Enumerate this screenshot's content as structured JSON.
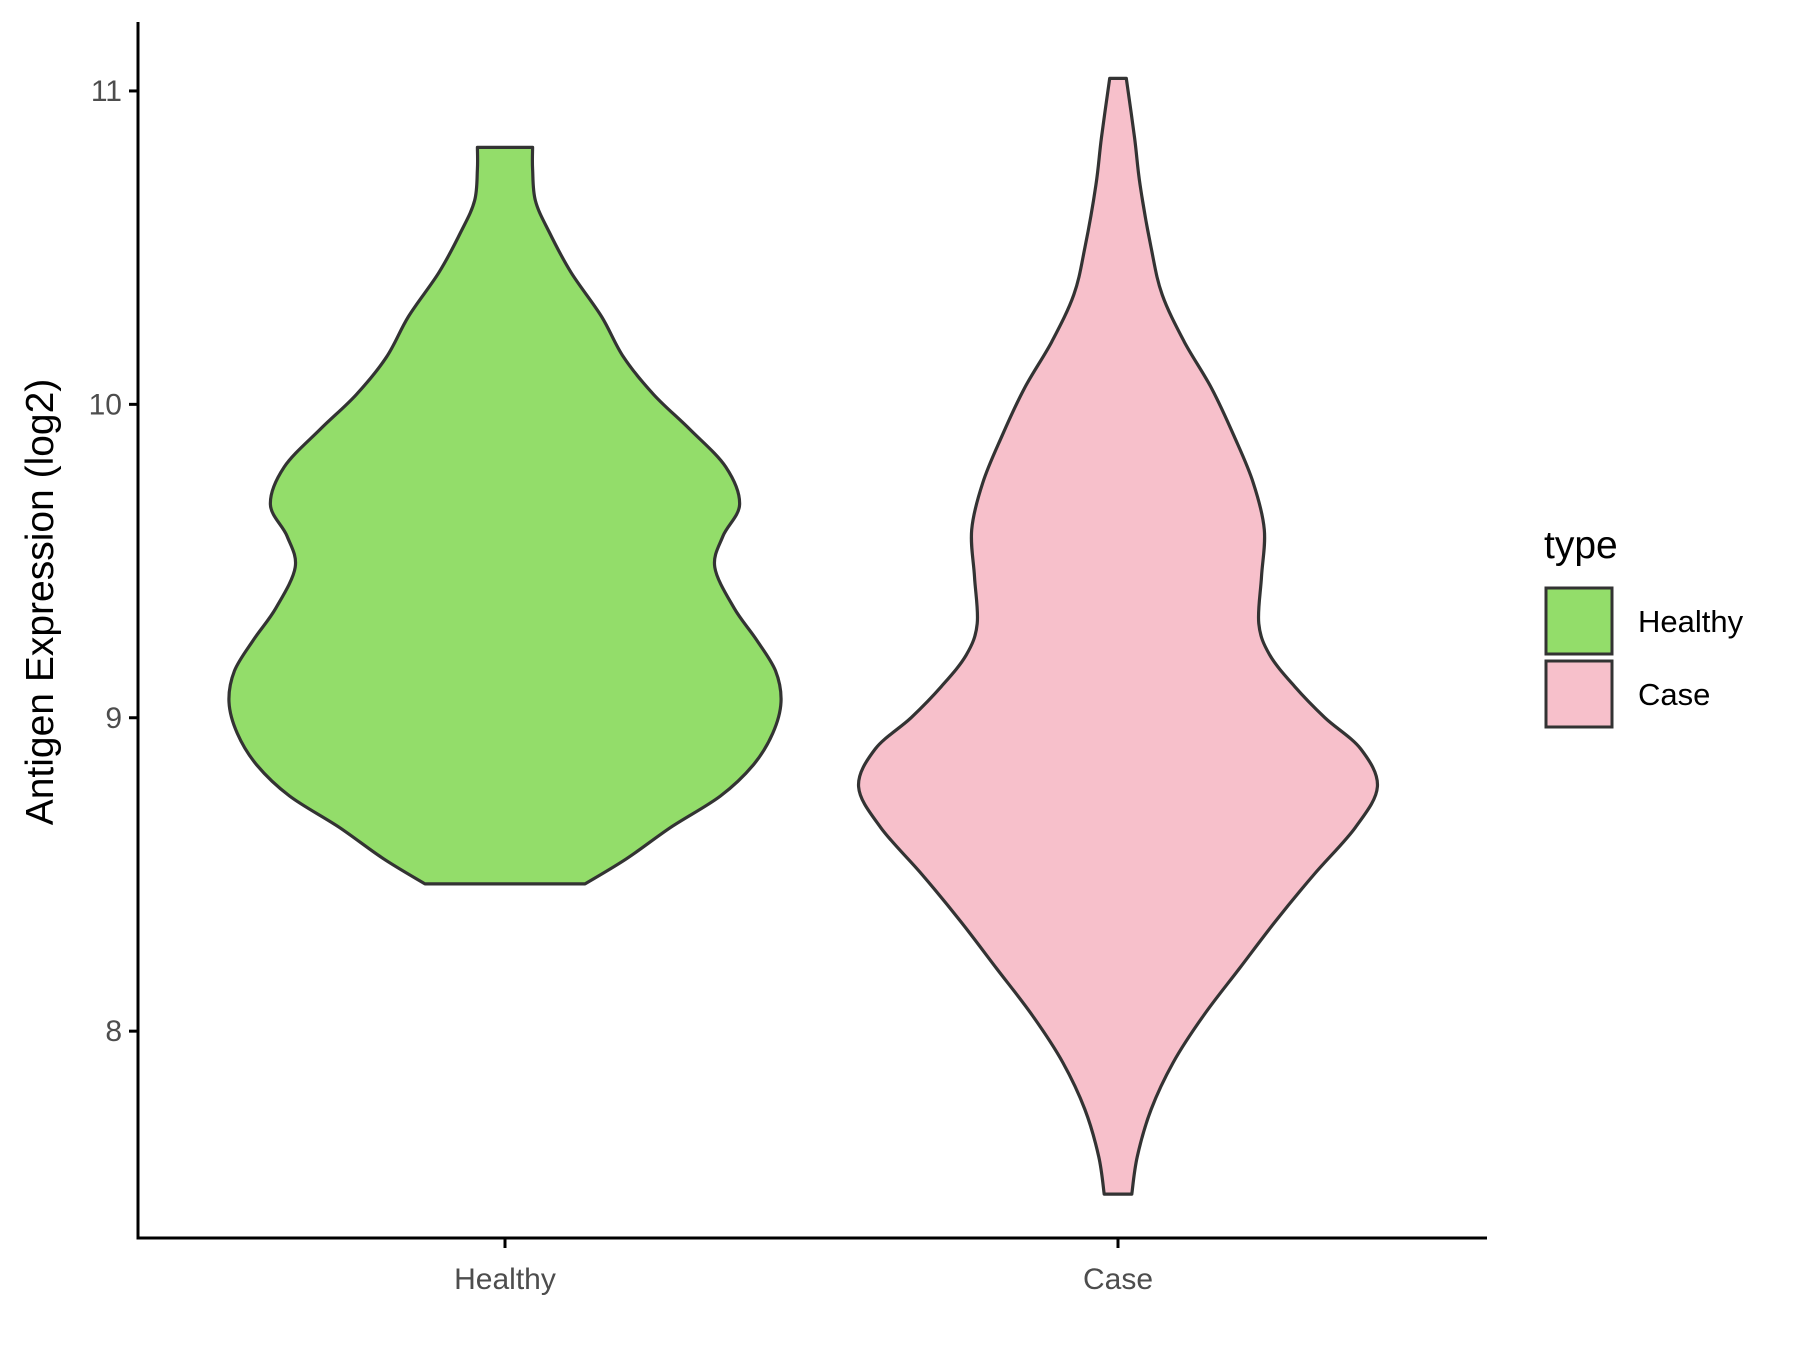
{
  "chart_data": {
    "type": "violin",
    "title": "",
    "xlabel": "",
    "ylabel": "Antigen Expression (log2)",
    "ylim": [
      7.34,
      11.22
    ],
    "yticks": [
      8,
      9,
      10,
      11
    ],
    "yticklabels": [
      "8",
      "9",
      "10",
      "11"
    ],
    "categories": [
      "Healthy",
      "Case"
    ],
    "grid": false,
    "legend": {
      "title": "type",
      "position": "right",
      "entries": [
        {
          "label": "Healthy",
          "color": "#93dd6a"
        },
        {
          "label": "Case",
          "color": "#f7c0cb"
        }
      ]
    },
    "series": [
      {
        "name": "Healthy",
        "color": "#93dd6a",
        "y_min": 8.47,
        "y_max": 10.82,
        "density_profile": [
          [
            8.47,
            0.29
          ],
          [
            8.55,
            0.44
          ],
          [
            8.65,
            0.6
          ],
          [
            8.75,
            0.78
          ],
          [
            8.85,
            0.9
          ],
          [
            8.95,
            0.97
          ],
          [
            9.05,
            1.0
          ],
          [
            9.15,
            0.98
          ],
          [
            9.25,
            0.91
          ],
          [
            9.35,
            0.83
          ],
          [
            9.48,
            0.76
          ],
          [
            9.58,
            0.79
          ],
          [
            9.68,
            0.85
          ],
          [
            9.8,
            0.8
          ],
          [
            9.92,
            0.67
          ],
          [
            10.03,
            0.54
          ],
          [
            10.15,
            0.43
          ],
          [
            10.28,
            0.35
          ],
          [
            10.42,
            0.24
          ],
          [
            10.55,
            0.16
          ],
          [
            10.65,
            0.11
          ],
          [
            10.75,
            0.1
          ],
          [
            10.82,
            0.1
          ]
        ]
      },
      {
        "name": "Case",
        "color": "#f7c0cb",
        "y_min": 7.48,
        "y_max": 11.04,
        "density_profile": [
          [
            7.48,
            0.05
          ],
          [
            7.6,
            0.07
          ],
          [
            7.75,
            0.12
          ],
          [
            7.9,
            0.2
          ],
          [
            8.05,
            0.31
          ],
          [
            8.2,
            0.44
          ],
          [
            8.35,
            0.57
          ],
          [
            8.5,
            0.71
          ],
          [
            8.65,
            0.86
          ],
          [
            8.78,
            0.94
          ],
          [
            8.9,
            0.88
          ],
          [
            9.0,
            0.75
          ],
          [
            9.1,
            0.64
          ],
          [
            9.2,
            0.55
          ],
          [
            9.3,
            0.51
          ],
          [
            9.45,
            0.52
          ],
          [
            9.6,
            0.53
          ],
          [
            9.75,
            0.49
          ],
          [
            9.9,
            0.42
          ],
          [
            10.05,
            0.34
          ],
          [
            10.2,
            0.24
          ],
          [
            10.35,
            0.16
          ],
          [
            10.5,
            0.12
          ],
          [
            10.7,
            0.08
          ],
          [
            10.85,
            0.06
          ],
          [
            11.04,
            0.03
          ]
        ]
      }
    ]
  }
}
